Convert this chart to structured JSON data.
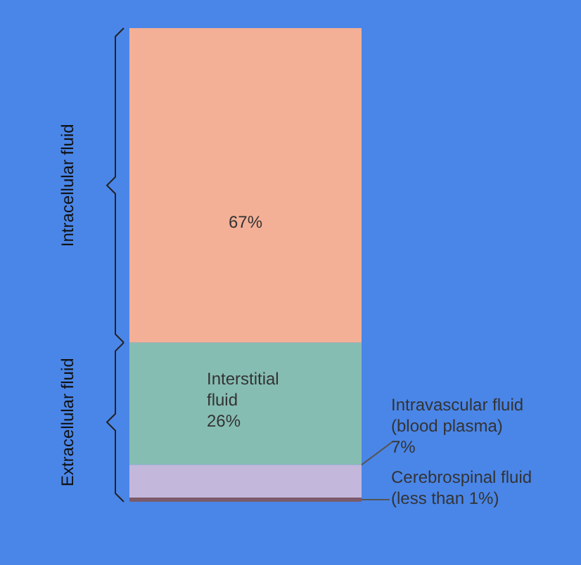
{
  "chart_data": {
    "type": "bar",
    "stacked": true,
    "categories": [
      null
    ],
    "tick_labels": false,
    "legend": false,
    "grid": false,
    "series": [
      {
        "name": "Cerebrospinal fluid",
        "color": "#7b5a6a",
        "values": [
          0.9
        ],
        "value_labels": [
          "(less than 1%)"
        ]
      },
      {
        "name": "Intravascular fluid (blood plasma)",
        "color": "#c3b7dc",
        "values": [
          7
        ],
        "value_labels": [
          "7%"
        ]
      },
      {
        "name": "Interstitial fluid",
        "color": "#86bdb3",
        "values": [
          26
        ],
        "value_labels": [
          "26%"
        ]
      },
      {
        "color": "#f3b096",
        "values": [
          67
        ],
        "value_labels": [
          "67%"
        ]
      }
    ],
    "annotations": [
      "Intracellular fluid",
      "Extracellular fluid"
    ]
  }
}
